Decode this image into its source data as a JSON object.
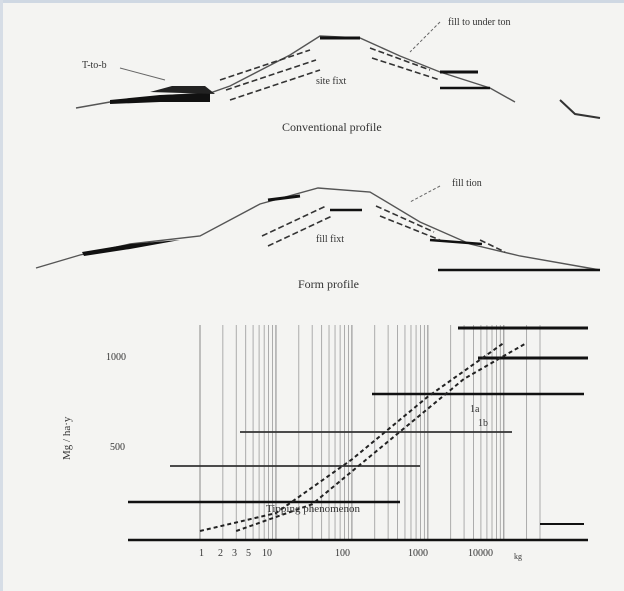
{
  "profile_top": {
    "caption": "Conventional profile",
    "label_left": "T-to-b",
    "label_right": "fill to under ton",
    "label_center": "site fixt"
  },
  "profile_middle": {
    "caption": "Form profile",
    "label_right": "fill tion",
    "label_center": "fill fixt"
  },
  "chart": {
    "ylabel": "Mg / ha·y",
    "y_ticks": [
      "1000",
      "500"
    ],
    "x_ticks": [
      "1",
      "2",
      "3",
      "5",
      "10",
      "100",
      "1000",
      "10000"
    ],
    "xlabel_suffix": "kg",
    "annotation_bottom": "Tipping phenomenon",
    "annotation_right_1": "1a",
    "annotation_right_2": "1b"
  },
  "chart_data": {
    "type": "line",
    "title": "",
    "xlabel": "",
    "ylabel": "Mg / ha·y",
    "x_scale": "log",
    "grid": "vertical",
    "series": [
      {
        "x": [
          1,
          10,
          100,
          1000,
          10000
        ],
        "y": [
          50,
          150,
          450,
          800,
          1100
        ]
      },
      {
        "x": [
          3,
          30,
          300,
          3000,
          20000
        ],
        "y": [
          50,
          200,
          550,
          900,
          1100
        ]
      }
    ]
  }
}
